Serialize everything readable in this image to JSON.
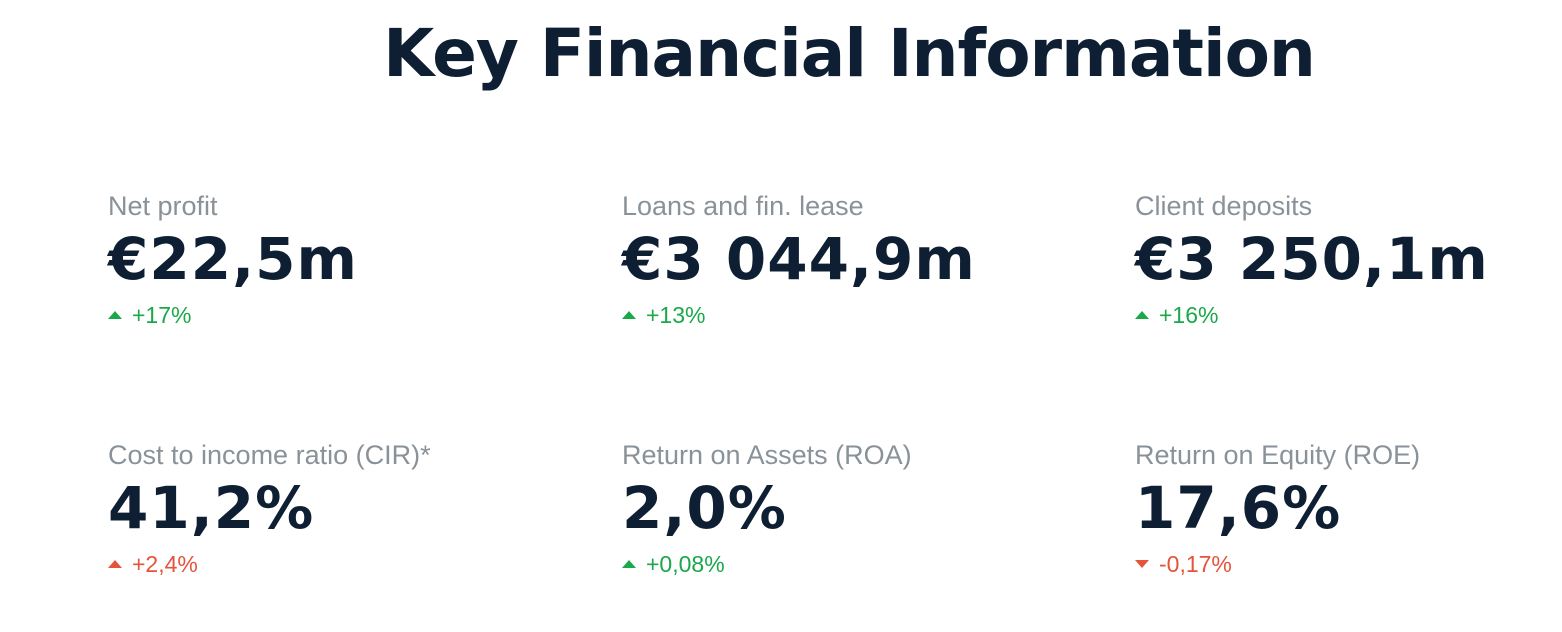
{
  "title": "Key Financial Information",
  "colors": {
    "heading": "#0f1f33",
    "label": "#8a9299",
    "positive": "#1aa84a",
    "negative": "#e5533b"
  },
  "metrics": [
    {
      "label": "Net profit",
      "value": "€22,5m",
      "change": "+17%",
      "direction": "up",
      "sentiment": "positive",
      "icon": "triangle-up-icon"
    },
    {
      "label": "Loans and fin. lease",
      "value": "€3 044,9m",
      "change": "+13%",
      "direction": "up",
      "sentiment": "positive",
      "icon": "triangle-up-icon"
    },
    {
      "label": "Client deposits",
      "value": "€3 250,1m",
      "change": "+16%",
      "direction": "up",
      "sentiment": "positive",
      "icon": "triangle-up-icon"
    },
    {
      "label": "Cost to income ratio (CIR)*",
      "value": "41,2%",
      "change": "+2,4%",
      "direction": "up",
      "sentiment": "negative",
      "icon": "triangle-up-icon"
    },
    {
      "label": "Return on Assets (ROA)",
      "value": "2,0%",
      "change": "+0,08%",
      "direction": "up",
      "sentiment": "positive",
      "icon": "triangle-up-icon"
    },
    {
      "label": "Return on Equity (ROE)",
      "value": "17,6%",
      "change": "-0,17%",
      "direction": "down",
      "sentiment": "negative",
      "icon": "triangle-down-icon"
    }
  ]
}
